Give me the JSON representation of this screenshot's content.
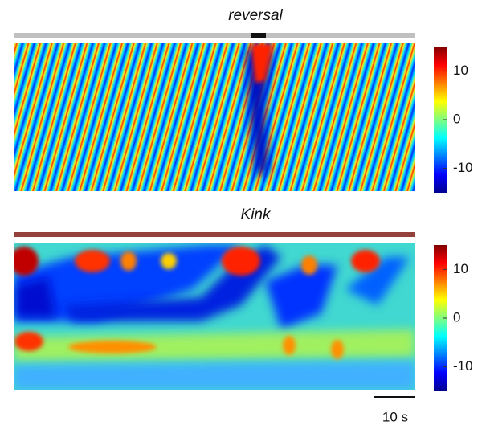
{
  "chart_data": [
    {
      "type": "heatmap",
      "title": "reversal",
      "colormap": "jet",
      "clim": [
        -15,
        15
      ],
      "cticks": [
        -10,
        0,
        10
      ]
    },
    {
      "type": "heatmap",
      "title": "Kink",
      "colormap": "jet",
      "clim": [
        -15,
        15
      ],
      "cticks": [
        -10,
        0,
        10
      ]
    }
  ],
  "scale_bar": {
    "label": "10 s"
  }
}
